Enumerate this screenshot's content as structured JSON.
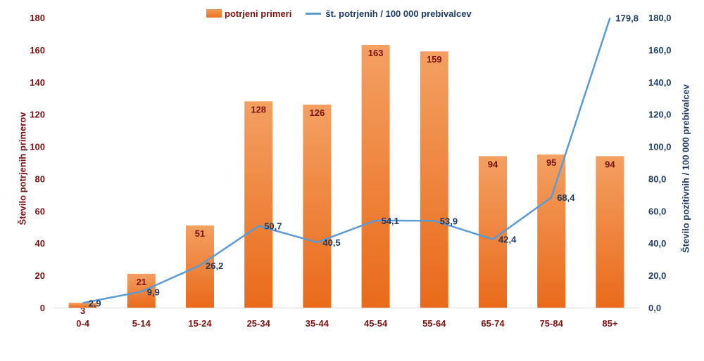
{
  "chart_data": {
    "type": "bar",
    "categories": [
      "0-4",
      "5-14",
      "15-24",
      "25-34",
      "35-44",
      "45-54",
      "55-64",
      "65-74",
      "75-84",
      "85+"
    ],
    "series": [
      {
        "name": "potrjeni primeri",
        "type": "bar",
        "axis": "left",
        "values": [
          3,
          21,
          51,
          128,
          126,
          163,
          159,
          94,
          95,
          94
        ],
        "labels": [
          "3",
          "21",
          "51",
          "128",
          "126",
          "163",
          "159",
          "94",
          "95",
          "94"
        ],
        "color": "#ef7b2f"
      },
      {
        "name": "št. potrjenih / 100 000 prebivalcev",
        "type": "line",
        "axis": "right",
        "values": [
          2.9,
          9.9,
          26.2,
          50.7,
          40.5,
          54.1,
          53.9,
          42.4,
          68.4,
          179.8
        ],
        "labels": [
          "2,9",
          "9,9",
          "26,2",
          "50,7",
          "40,5",
          "54,1",
          "53,9",
          "42,4",
          "68,4",
          "179,8"
        ],
        "color": "#5b9bd5"
      }
    ],
    "y_left": {
      "label": "Število potrjenih primerov",
      "ylim": [
        0,
        180
      ],
      "ticks": [
        "0",
        "20",
        "40",
        "60",
        "80",
        "100",
        "120",
        "140",
        "160",
        "180"
      ],
      "color": "#7a1212"
    },
    "y_right": {
      "label": "Število pozitivnih / 100 000 prebivalcev",
      "ylim": [
        0,
        180
      ],
      "ticks": [
        "0,0",
        "20,0",
        "40,0",
        "60,0",
        "80,0",
        "100,0",
        "120,0",
        "140,0",
        "160,0",
        "180,0"
      ],
      "color": "#1f3c64"
    },
    "xlabel": "",
    "x_tick_color": "#7a1212",
    "grid": false,
    "legend_position": "top"
  }
}
